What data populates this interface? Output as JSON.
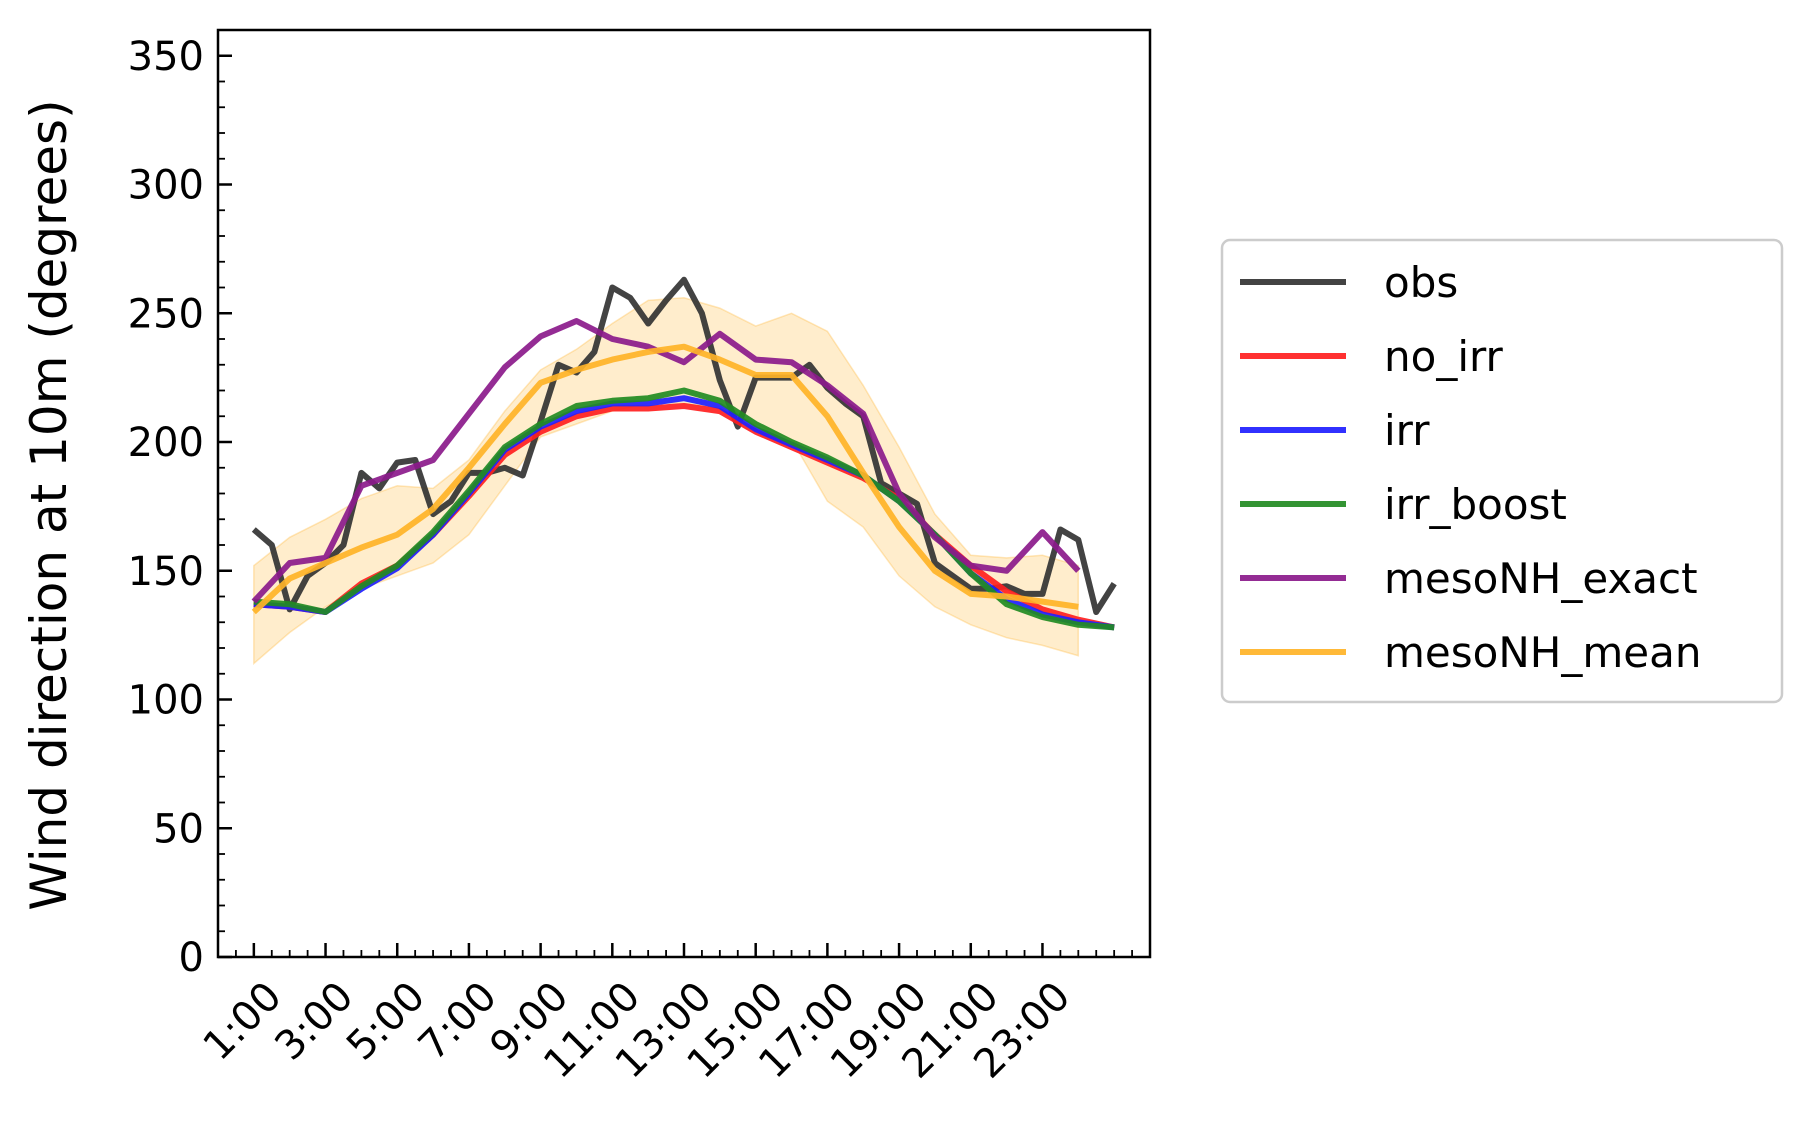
{
  "chart_data": {
    "type": "line",
    "ylabel": "Wind direction at 10m (degrees)",
    "xlabel": "",
    "title": "",
    "ylim": [
      0,
      360
    ],
    "yticks": [
      0,
      50,
      100,
      150,
      200,
      250,
      300,
      350
    ],
    "xlim": [
      0,
      26
    ],
    "xticks": [
      1,
      3,
      5,
      7,
      9,
      11,
      13,
      15,
      17,
      19,
      21,
      23
    ],
    "xtick_labels": [
      "1:00",
      "3:00",
      "5:00",
      "7:00",
      "9:00",
      "11:00",
      "13:00",
      "15:00",
      "17:00",
      "19:00",
      "21:00",
      "23:00"
    ],
    "grid": false,
    "legend_position": "outside-right",
    "band": {
      "series": "mesoNH_mean",
      "color": "#ffa500",
      "x": [
        1,
        2,
        3,
        4,
        5,
        6,
        7,
        8,
        9,
        10,
        11,
        12,
        13,
        14,
        15,
        16,
        17,
        18,
        19,
        20,
        21,
        22,
        23,
        24
      ],
      "upper": [
        152,
        163,
        170,
        178,
        183,
        182,
        193,
        212,
        228,
        236,
        246,
        255,
        256,
        252,
        245,
        250,
        243,
        222,
        198,
        172,
        156,
        155,
        156,
        152
      ],
      "lower": [
        114,
        126,
        136,
        143,
        148,
        153,
        164,
        183,
        202,
        207,
        212,
        215,
        215,
        213,
        207,
        201,
        177,
        167,
        148,
        136,
        129,
        124,
        121,
        117
      ]
    },
    "series": [
      {
        "name": "obs",
        "color": "#333333",
        "x": [
          1,
          1.5,
          2,
          2.5,
          3,
          3.5,
          4,
          4.5,
          5,
          5.5,
          6,
          6.5,
          7,
          7.5,
          8,
          8.5,
          9,
          9.5,
          10,
          10.5,
          11,
          11.5,
          12,
          12.5,
          13,
          13.5,
          14,
          14.5,
          15,
          15.5,
          16,
          16.5,
          17,
          17.5,
          18,
          18.5,
          19,
          19.5,
          20,
          20.5,
          21,
          21.5,
          22,
          22.5,
          23,
          23.5,
          24,
          24.5,
          25
        ],
        "values": [
          166,
          160,
          135,
          148,
          153,
          160,
          188,
          182,
          192,
          193,
          172,
          177,
          188,
          188,
          190,
          187,
          208,
          230,
          227,
          235,
          260,
          256,
          246,
          255,
          263,
          250,
          224,
          206,
          225,
          225,
          225,
          230,
          221,
          215,
          210,
          184,
          180,
          176,
          153,
          148,
          143,
          143,
          144,
          141,
          141,
          166,
          162,
          134,
          145
        ]
      },
      {
        "name": "no_irr",
        "color": "#ff2020",
        "x": [
          1,
          2,
          3,
          4,
          5,
          6,
          7,
          8,
          9,
          10,
          11,
          12,
          13,
          14,
          15,
          16,
          17,
          18,
          19,
          20,
          21,
          22,
          23,
          24,
          25
        ],
        "values": [
          137,
          136,
          134,
          145,
          152,
          164,
          179,
          195,
          204,
          210,
          213,
          213,
          214,
          212,
          204,
          198,
          192,
          186,
          178,
          164,
          152,
          142,
          135,
          131,
          128
        ]
      },
      {
        "name": "irr",
        "color": "#2020ff",
        "x": [
          1,
          2,
          3,
          4,
          5,
          6,
          7,
          8,
          9,
          10,
          11,
          12,
          13,
          14,
          15,
          16,
          17,
          18,
          19,
          20,
          21,
          22,
          23,
          24,
          25
        ],
        "values": [
          137,
          136,
          134,
          143,
          151,
          164,
          180,
          197,
          206,
          212,
          215,
          215,
          217,
          214,
          205,
          199,
          193,
          187,
          177,
          164,
          149,
          139,
          133,
          130,
          128
        ]
      },
      {
        "name": "irr_boost",
        "color": "#228b22",
        "x": [
          1,
          2,
          3,
          4,
          5,
          6,
          7,
          8,
          9,
          10,
          11,
          12,
          13,
          14,
          15,
          16,
          17,
          18,
          19,
          20,
          21,
          22,
          23,
          24,
          25
        ],
        "values": [
          138,
          137,
          134,
          144,
          152,
          165,
          181,
          198,
          207,
          214,
          216,
          217,
          220,
          216,
          207,
          200,
          194,
          187,
          177,
          164,
          149,
          137,
          132,
          129,
          128
        ]
      },
      {
        "name": "mesoNH_exact",
        "color": "#8b1a8b",
        "x": [
          1,
          2,
          3,
          4,
          5,
          6,
          7,
          8,
          9,
          10,
          11,
          12,
          13,
          14,
          15,
          16,
          17,
          18,
          19,
          20,
          21,
          22,
          23,
          24
        ],
        "values": [
          138,
          153,
          155,
          183,
          188,
          193,
          211,
          229,
          241,
          247,
          240,
          237,
          231,
          242,
          232,
          231,
          222,
          211,
          180,
          163,
          152,
          150,
          165,
          150
        ]
      },
      {
        "name": "mesoNH_mean",
        "color": "#ffb327",
        "x": [
          1,
          2,
          3,
          4,
          5,
          6,
          7,
          8,
          9,
          10,
          11,
          12,
          13,
          14,
          15,
          16,
          17,
          18,
          19,
          20,
          21,
          22,
          23,
          24
        ],
        "values": [
          134,
          147,
          153,
          159,
          164,
          174,
          190,
          207,
          223,
          228,
          232,
          235,
          237,
          232,
          226,
          226,
          210,
          188,
          167,
          150,
          141,
          140,
          138,
          136
        ]
      }
    ]
  }
}
